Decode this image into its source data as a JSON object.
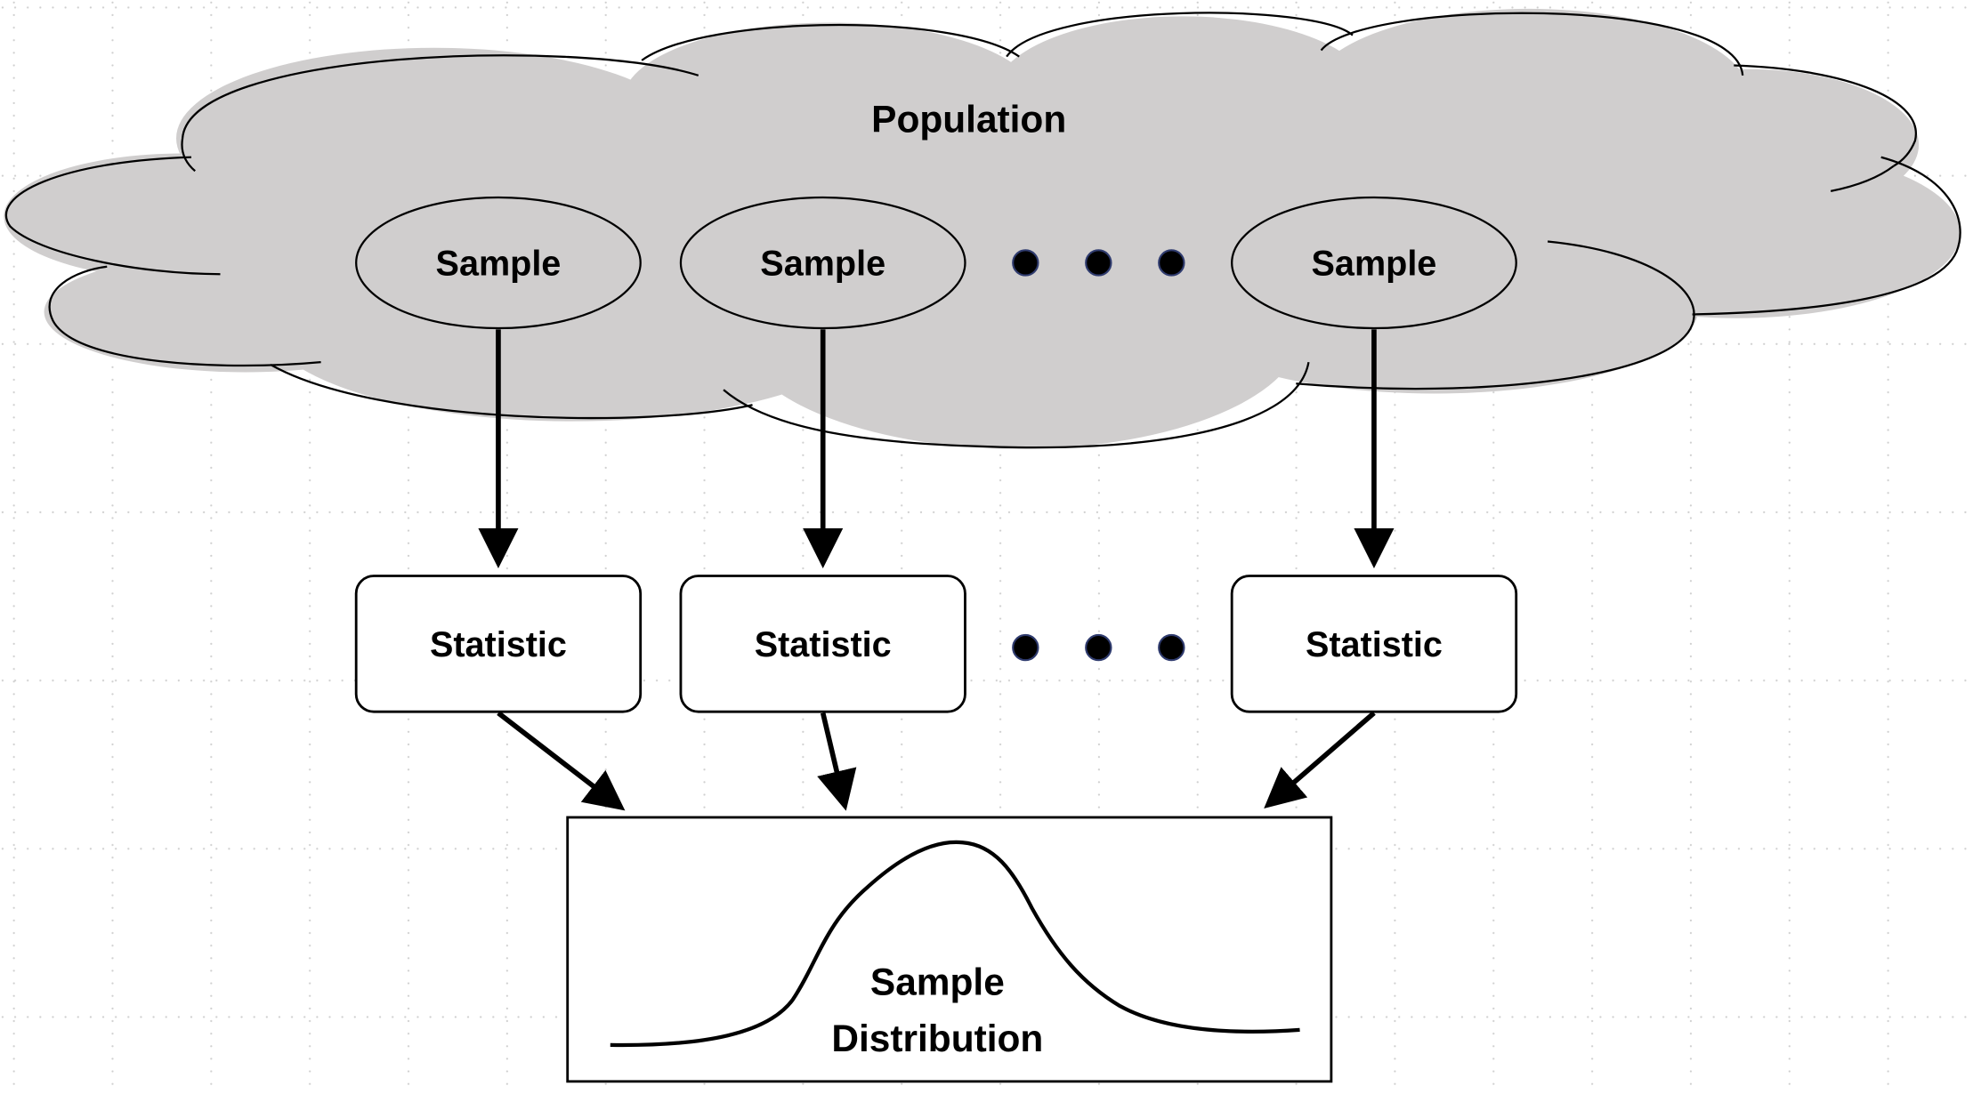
{
  "diagram": {
    "population_label": "Population",
    "samples": [
      {
        "label": "Sample"
      },
      {
        "label": "Sample"
      },
      {
        "label": "Sample"
      }
    ],
    "statistics": [
      {
        "label": "Statistic"
      },
      {
        "label": "Statistic"
      },
      {
        "label": "Statistic"
      }
    ],
    "distribution_label_line1": "Sample",
    "distribution_label_line2": "Distribution"
  },
  "colors": {
    "cloud_fill": "#d0cece",
    "stroke": "#000000",
    "dot_fill": "#000000",
    "dot_outline": "#2f3b6e",
    "grid_dots": "#c8c8c8"
  },
  "icons": {
    "ellipsis": "three-dots"
  }
}
